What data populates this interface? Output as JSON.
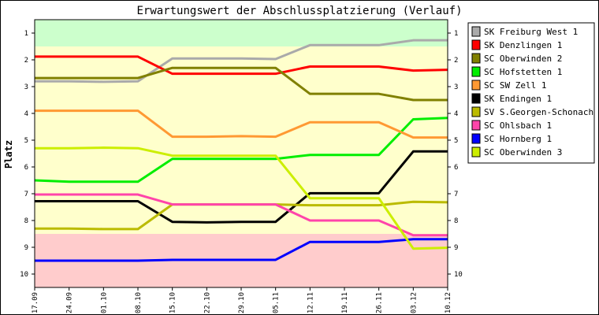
{
  "chart_data": {
    "type": "line",
    "title": "Erwartungswert der Abschlussplatzierung (Verlauf)",
    "xlabel": "",
    "ylabel": "Platz",
    "ylim": [
      1,
      10
    ],
    "y_inverted": true,
    "y_ticks": [
      "1",
      "2",
      "3",
      "4",
      "5",
      "6",
      "7",
      "8",
      "9",
      "10"
    ],
    "categories": [
      "17.09",
      "24.09",
      "01.10",
      "08.10",
      "15.10",
      "22.10",
      "29.10",
      "05.11",
      "12.11",
      "19.11",
      "26.11",
      "03.12",
      "10.12"
    ],
    "grid": false,
    "legend_position": "right",
    "zones": [
      {
        "from": 0.5,
        "to": 1.5,
        "color": "#ccffcc"
      },
      {
        "from": 1.5,
        "to": 8.5,
        "color": "#ffffcc"
      },
      {
        "from": 8.5,
        "to": 10.5,
        "color": "#ffcccc"
      }
    ],
    "series": [
      {
        "name": "SK Freiburg West 1",
        "color": "#aaaaaa",
        "values": [
          2.8,
          2.8,
          2.82,
          2.8,
          1.95,
          1.95,
          1.95,
          1.97,
          1.45,
          1.45,
          1.45,
          1.27,
          1.27
        ]
      },
      {
        "name": "SK Denzlingen 1",
        "color": "#ff0000",
        "values": [
          1.88,
          1.88,
          1.88,
          1.88,
          2.52,
          2.52,
          2.52,
          2.52,
          2.25,
          2.25,
          2.25,
          2.4,
          2.37
        ]
      },
      {
        "name": "SC Oberwinden 2",
        "color": "#808000",
        "values": [
          2.68,
          2.68,
          2.68,
          2.68,
          2.3,
          2.3,
          2.3,
          2.3,
          3.27,
          3.27,
          3.27,
          3.5,
          3.5
        ]
      },
      {
        "name": "SC Hofstetten 1",
        "color": "#00ee00",
        "values": [
          6.5,
          6.55,
          6.55,
          6.55,
          5.7,
          5.7,
          5.7,
          5.7,
          5.55,
          5.55,
          5.55,
          4.22,
          4.17
        ]
      },
      {
        "name": "SC SW Zell 1",
        "color": "#ff9933",
        "values": [
          3.9,
          3.9,
          3.9,
          3.9,
          4.87,
          4.87,
          4.85,
          4.87,
          4.33,
          4.33,
          4.33,
          4.9,
          4.9
        ]
      },
      {
        "name": "SK Endingen 1",
        "color": "#000000",
        "values": [
          7.28,
          7.28,
          7.28,
          7.28,
          8.05,
          8.07,
          8.05,
          8.05,
          6.98,
          6.98,
          6.98,
          5.42,
          5.42
        ]
      },
      {
        "name": "SV S.Georgen-Schonach 1",
        "color": "#bbbb00",
        "values": [
          8.3,
          8.3,
          8.32,
          8.32,
          7.4,
          7.4,
          7.4,
          7.4,
          7.43,
          7.43,
          7.43,
          7.3,
          7.32
        ]
      },
      {
        "name": "SC Ohlsbach 1",
        "color": "#ff44aa",
        "values": [
          7.03,
          7.03,
          7.03,
          7.03,
          7.4,
          7.4,
          7.4,
          7.4,
          8.0,
          8.0,
          8.0,
          8.55,
          8.55
        ]
      },
      {
        "name": "SC Hornberg 1",
        "color": "#0000ff",
        "values": [
          9.5,
          9.5,
          9.5,
          9.5,
          9.47,
          9.47,
          9.47,
          9.47,
          8.8,
          8.8,
          8.8,
          8.7,
          8.7
        ]
      },
      {
        "name": "SC Oberwinden 3",
        "color": "#ccee00",
        "values": [
          5.3,
          5.3,
          5.28,
          5.3,
          5.58,
          5.58,
          5.58,
          5.58,
          7.17,
          7.17,
          7.17,
          9.05,
          9.02
        ]
      }
    ]
  }
}
